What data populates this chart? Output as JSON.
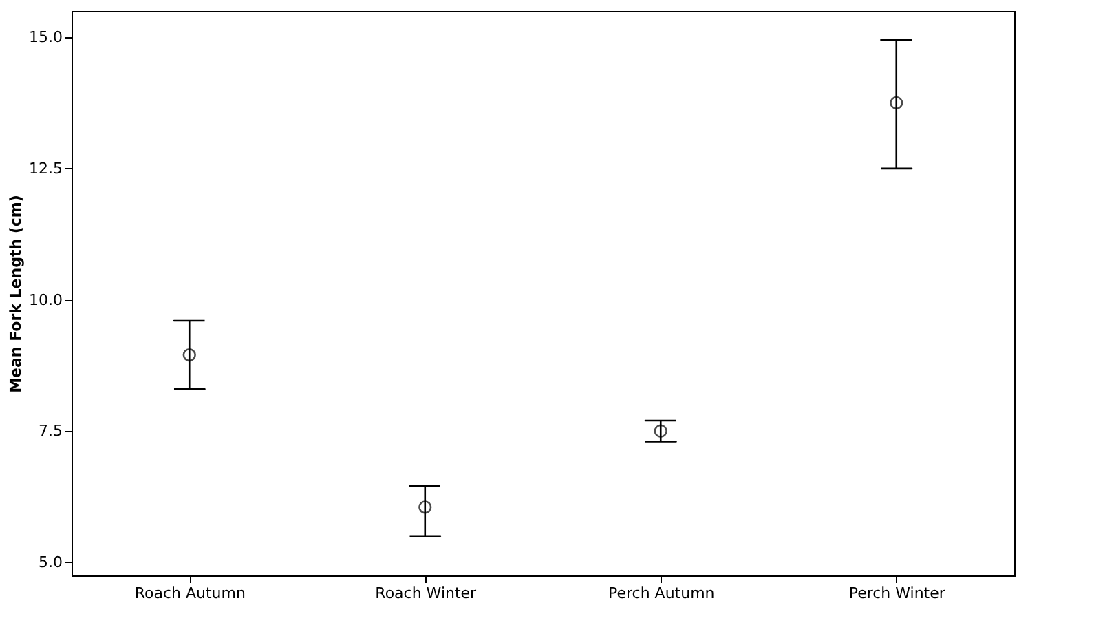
{
  "chart_data": {
    "type": "scatter",
    "ylabel": "Mean Fork Length (cm)",
    "categories": [
      "Roach Autumn",
      "Roach Winter",
      "Perch Autumn",
      "Perch Winter"
    ],
    "values": [
      8.95,
      6.05,
      7.5,
      13.75
    ],
    "errors": [
      [
        8.3,
        9.6
      ],
      [
        5.5,
        6.45
      ],
      [
        7.3,
        7.7
      ],
      [
        12.5,
        14.95
      ]
    ],
    "color": "#000000",
    "marker": "circle",
    "ylim": [
      4.75,
      15.5
    ],
    "yticks": [
      {
        "value": 5,
        "label": "5.0"
      },
      {
        "value": 7.5,
        "label": "7.5"
      },
      {
        "value": 10,
        "label": "10.0"
      },
      {
        "value": 12.5,
        "label": "12.5"
      },
      {
        "value": 15,
        "label": "15.0"
      }
    ],
    "grid": false
  }
}
